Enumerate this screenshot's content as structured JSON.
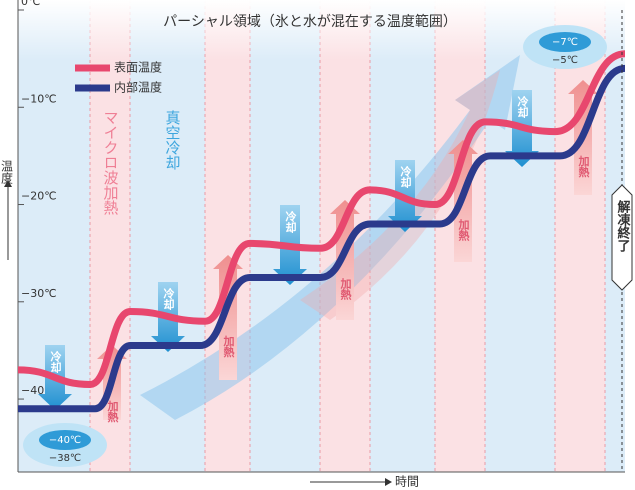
{
  "chart_data": {
    "type": "line",
    "title": "パーシャル領域（氷と水が混在する温度範囲）",
    "ylabel": "温度",
    "xlabel": "時間",
    "xlim": [
      0,
      100
    ],
    "ylim": [
      -47.5,
      0
    ],
    "yticks": [
      {
        "value": 0,
        "label": "0℃"
      },
      {
        "value": -10,
        "label": "−10℃"
      },
      {
        "value": -20,
        "label": "−20℃"
      },
      {
        "value": -30,
        "label": "−30℃"
      },
      {
        "value": -40,
        "label": "−40℃"
      }
    ],
    "series": [
      {
        "name": "表面温度",
        "color": "#e8476e",
        "x": [
          0,
          11.9,
          18.5,
          30.8,
          38.2,
          49.8,
          58,
          68.7,
          77,
          88.5,
          100
        ],
        "values": [
          -37,
          -38.5,
          -31,
          -32,
          -24,
          -24.5,
          -18.5,
          -20,
          -11.5,
          -12.5,
          -4.5
        ]
      },
      {
        "name": "内部温度",
        "color": "#2b3a8c",
        "x": [
          0,
          12.7,
          18.5,
          30,
          38.2,
          49.8,
          58,
          69.5,
          77.8,
          89.3,
          100
        ],
        "values": [
          -41,
          -41,
          -34.5,
          -34.5,
          -27.5,
          -27.5,
          -22,
          -22,
          -15,
          -15,
          -6
        ]
      }
    ],
    "annotations": {
      "microwave": "マイクロ波加熱",
      "vacuum": "真空冷却",
      "cooling": [
        "冷却",
        "冷却",
        "冷却",
        "冷却",
        "冷却"
      ],
      "heating": [
        "加熱",
        "加熱",
        "加熱",
        "加熱",
        "加熱"
      ],
      "start": [
        "−40℃",
        "−38℃"
      ],
      "end": [
        "−7℃",
        "−5℃"
      ],
      "finish": "解凍終了"
    }
  }
}
